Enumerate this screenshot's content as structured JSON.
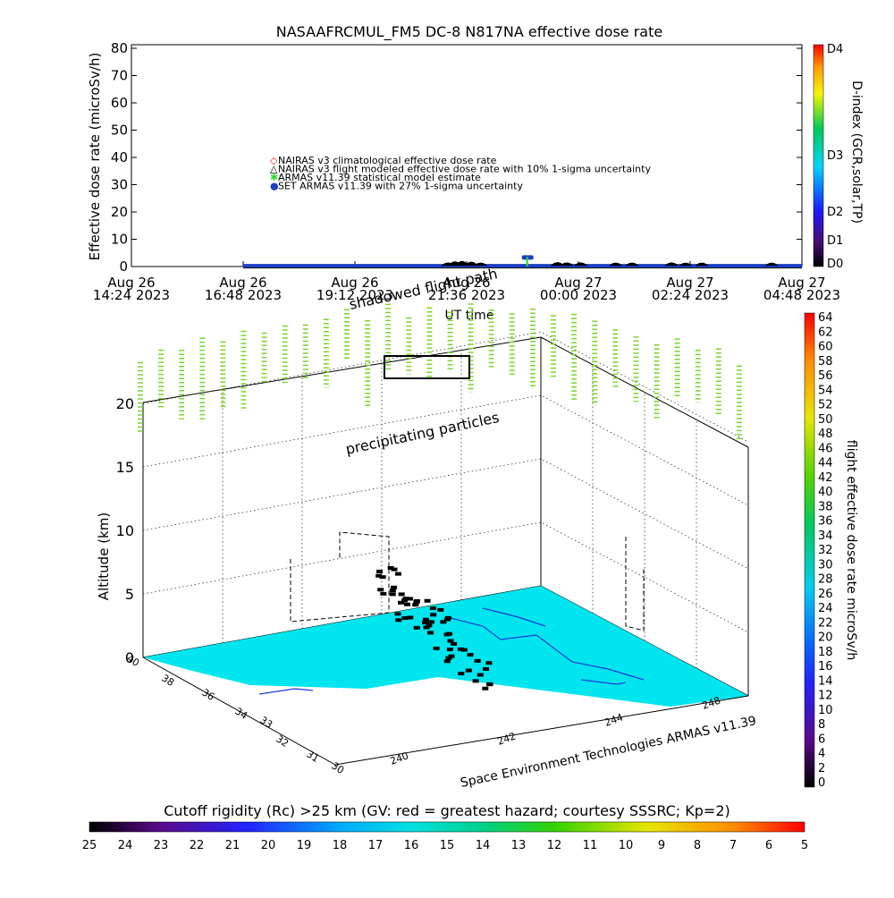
{
  "colors": {
    "fill3d": "#00e5ee",
    "coast": "#1a3cd8",
    "track": "#1b3fc4",
    "precip": "#7ed22a",
    "nairas_clim": "#e32121",
    "armas_est": "#2adc2a"
  },
  "chart_data": [
    {
      "type": "line",
      "title": "NASAAFRCMUL_FM5 DC-8   N817NA effective dose rate",
      "xlabel": "UT time",
      "ylabel": "Effective dose rate (microSv/h)",
      "ylim": [
        0,
        80
      ],
      "yticks": [
        "0",
        "10",
        "20",
        "30",
        "40",
        "50",
        "60",
        "70",
        "80"
      ],
      "xticks": [
        {
          "date": "Aug 26",
          "time": "14:24 2023"
        },
        {
          "date": "Aug 26",
          "time": "16:48 2023"
        },
        {
          "date": "Aug 26",
          "time": "19:12 2023"
        },
        {
          "date": "Aug 26",
          "time": "21:36 2023"
        },
        {
          "date": "Aug 27",
          "time": "00:00 2023"
        },
        {
          "date": "Aug 27",
          "time": "02:24 2023"
        },
        {
          "date": "Aug 27",
          "time": "04:48 2023"
        }
      ],
      "xlim_hours": [
        0,
        14.4
      ],
      "legend": [
        {
          "symbol": "◇",
          "color": "#e32121",
          "label": "NAIRAS v3 climatological effective dose rate"
        },
        {
          "symbol": "△",
          "color": "#000000",
          "label": "NAIRAS v3 flight modeled effective dose rate with 10% 1-sigma uncertainty"
        },
        {
          "symbol": "✱",
          "color": "#2adc2a",
          "label": "ARMAS v11.39 statistical model estimate"
        },
        {
          "symbol": "●",
          "color": "#1b3fc4",
          "label": "SET ARMAS v11.39 with 27% 1-sigma uncertainty"
        }
      ],
      "series": [
        {
          "name": "SET ARMAS v11.39 with 27% 1-sigma uncertainty",
          "x_hours": [
            2.4,
            14.4
          ],
          "y": [
            0.3,
            0.3
          ]
        },
        {
          "name": "NAIRAS v3 flight modeled effective dose rate with 10% 1-sigma uncertainty",
          "x_hours": [
            6.8,
            6.95,
            7.1,
            7.3,
            7.5,
            9.15,
            9.35,
            9.65,
            10.4,
            10.75,
            11.6,
            11.9,
            12.25,
            13.75
          ],
          "y": [
            1.0,
            1.8,
            2.2,
            1.6,
            0.9,
            1.2,
            1.0,
            1.1,
            0.9,
            0.9,
            1.1,
            0.8,
            0.9,
            0.8
          ]
        },
        {
          "name": "ARMAS spike",
          "x_hours": [
            8.5,
            8.6
          ],
          "y": [
            3.5,
            3.5
          ]
        }
      ],
      "annotations": [
        "shadowed flight path"
      ],
      "right_axis": {
        "label": "D-index (GCR,solar,TP)",
        "ticks": [
          "D0",
          "D1",
          "D2",
          "D3",
          "D4"
        ]
      }
    },
    {
      "type": "scatter",
      "subtype": "3d-flight-track",
      "zlabel": "Altitude (km)",
      "zticks": [
        "0",
        "5",
        "10",
        "15",
        "20"
      ],
      "zlim": [
        0,
        20
      ],
      "lat_ticks": [
        "30",
        "31",
        "32",
        "33",
        "34",
        "36",
        "38",
        "40"
      ],
      "lon_ticks": [
        "240",
        "242",
        "244",
        "248"
      ],
      "annotation": "precipitating particles",
      "credit": "Space Environment Technologies ARMAS v11.39",
      "colorbar_right": {
        "label": "flight effective dose rate microSv/h",
        "ticks": [
          "0",
          "2",
          "4",
          "6",
          "8",
          "10",
          "12",
          "14",
          "16",
          "18",
          "20",
          "22",
          "24",
          "26",
          "28",
          "30",
          "32",
          "34",
          "36",
          "38",
          "40",
          "42",
          "44",
          "46",
          "48",
          "50",
          "52",
          "54",
          "56",
          "58",
          "60",
          "62",
          "64"
        ]
      },
      "colorbar_bottom": {
        "label": "Cutoff rigidity (Rc) >25 km (GV: red = greatest hazard; courtesy SSSRC; Kp=2)",
        "ticks": [
          "25",
          "24",
          "23",
          "22",
          "21",
          "20",
          "19",
          "18",
          "17",
          "16",
          "15",
          "14",
          "13",
          "12",
          "11",
          "10",
          "9",
          "8",
          "7",
          "6",
          "5"
        ]
      }
    }
  ]
}
